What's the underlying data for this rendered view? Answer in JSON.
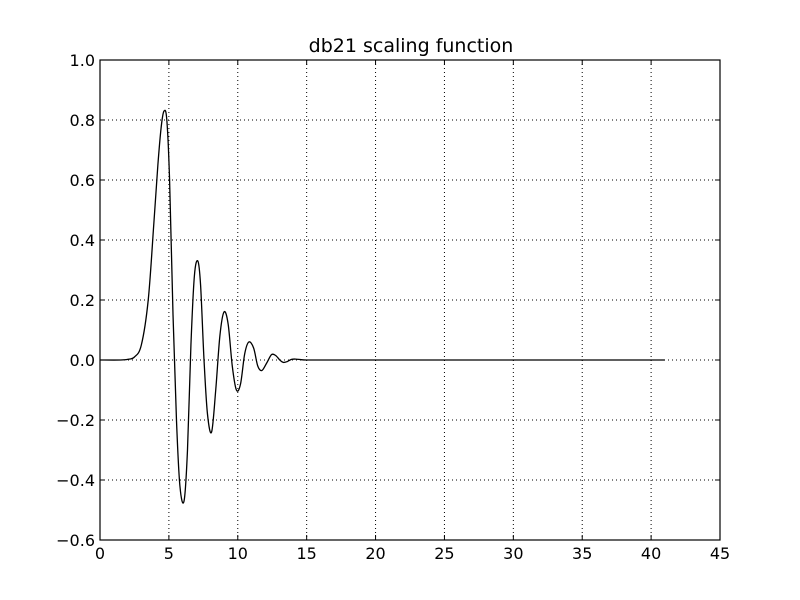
{
  "chart_data": {
    "type": "line",
    "title": "db21 scaling function",
    "xlabel": "",
    "ylabel": "",
    "xlim": [
      0,
      45
    ],
    "ylim": [
      -0.6,
      1.0
    ],
    "grid": true,
    "x_ticks": [
      0,
      5,
      10,
      15,
      20,
      25,
      30,
      35,
      40,
      45
    ],
    "y_ticks": [
      -0.6,
      -0.4,
      -0.2,
      0.0,
      0.2,
      0.4,
      0.6,
      0.8,
      1.0
    ],
    "x_tick_labels": [
      "0",
      "5",
      "10",
      "15",
      "20",
      "25",
      "30",
      "35",
      "40",
      "45"
    ],
    "y_tick_labels": [
      "−0.6",
      "−0.4",
      "−0.2",
      "0.0",
      "0.2",
      "0.4",
      "0.6",
      "0.8",
      "1.0"
    ],
    "series": [
      {
        "color": "#000000",
        "x": [
          0,
          1.5,
          2.0,
          2.5,
          3.0,
          3.5,
          3.9,
          4.2,
          4.45,
          4.65,
          4.85,
          5.05,
          5.3,
          5.55,
          5.8,
          6.1,
          6.35,
          6.6,
          6.85,
          7.1,
          7.3,
          7.55,
          7.8,
          8.1,
          8.4,
          8.7,
          9.0,
          9.3,
          9.6,
          9.9,
          10.2,
          10.5,
          10.8,
          11.15,
          11.45,
          11.75,
          12.1,
          12.45,
          12.75,
          13.05,
          13.3,
          13.6,
          13.9,
          14.2,
          14.6,
          15.0,
          15.5,
          16.0,
          17.0,
          20.0,
          30.0,
          41.0
        ],
        "y": [
          0.0,
          0.0,
          0.002,
          0.01,
          0.05,
          0.2,
          0.45,
          0.65,
          0.78,
          0.83,
          0.8,
          0.6,
          0.15,
          -0.2,
          -0.42,
          -0.47,
          -0.3,
          0.05,
          0.28,
          0.33,
          0.25,
          0.0,
          -0.18,
          -0.24,
          -0.1,
          0.08,
          0.16,
          0.12,
          -0.02,
          -0.1,
          -0.08,
          0.02,
          0.06,
          0.04,
          -0.02,
          -0.035,
          -0.01,
          0.018,
          0.015,
          0.0,
          -0.008,
          -0.005,
          0.002,
          0.003,
          0.001,
          0.0,
          0.0,
          0.0,
          0.0,
          0.0,
          0.0,
          0.0
        ]
      }
    ]
  }
}
